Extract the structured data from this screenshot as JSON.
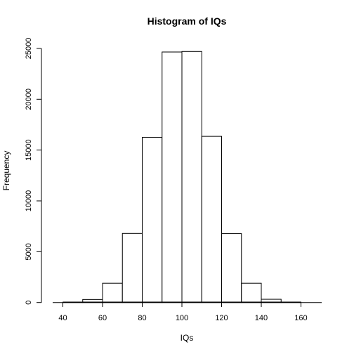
{
  "chart_data": {
    "type": "bar",
    "title": "Histogram of IQs",
    "xlabel": "IQs",
    "ylabel": "Frequency",
    "bins": [
      {
        "start": 40,
        "end": 50,
        "value": 30
      },
      {
        "start": 50,
        "end": 60,
        "value": 300
      },
      {
        "start": 60,
        "end": 70,
        "value": 1900
      },
      {
        "start": 70,
        "end": 80,
        "value": 6800
      },
      {
        "start": 80,
        "end": 90,
        "value": 16250
      },
      {
        "start": 90,
        "end": 100,
        "value": 24650
      },
      {
        "start": 100,
        "end": 110,
        "value": 24700
      },
      {
        "start": 110,
        "end": 120,
        "value": 16350
      },
      {
        "start": 120,
        "end": 130,
        "value": 6780
      },
      {
        "start": 130,
        "end": 140,
        "value": 1900
      },
      {
        "start": 140,
        "end": 150,
        "value": 320
      },
      {
        "start": 150,
        "end": 160,
        "value": 40
      }
    ],
    "x_ticks": [
      40,
      60,
      80,
      100,
      120,
      140,
      160
    ],
    "y_ticks": [
      0,
      5000,
      10000,
      15000,
      20000,
      25000
    ],
    "xlim": [
      29.2,
      170.8
    ],
    "ylim": [
      -988,
      25688
    ],
    "grid": false,
    "bar_fill": "#ffffff",
    "bar_stroke": "#000000"
  }
}
